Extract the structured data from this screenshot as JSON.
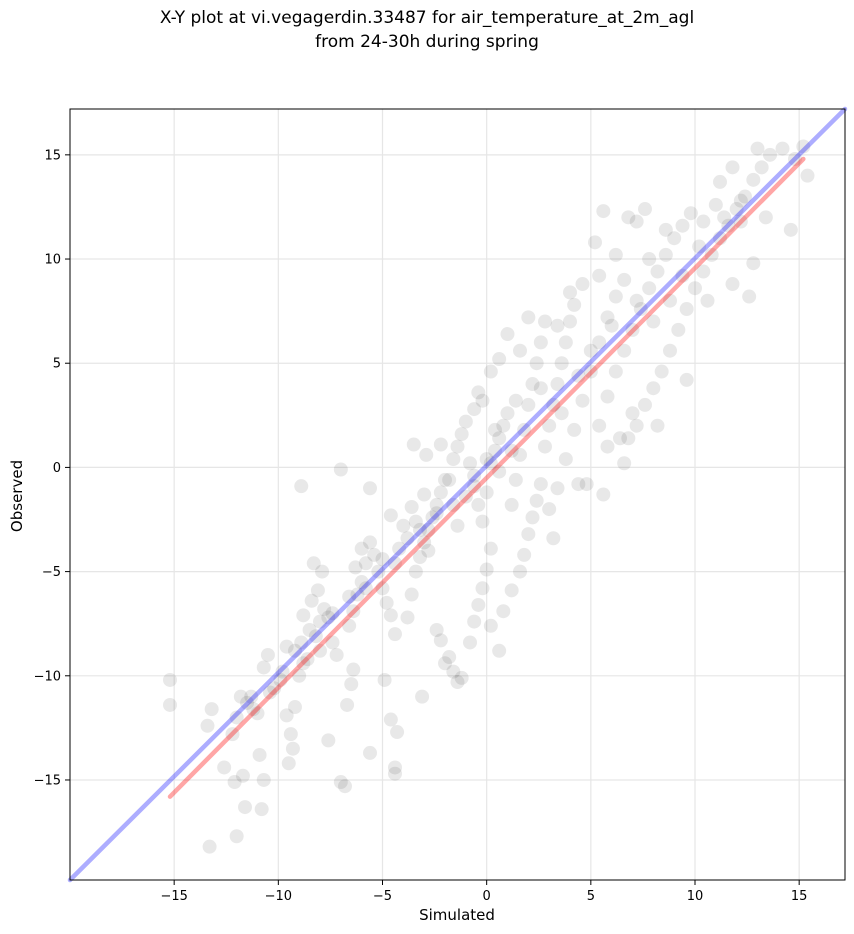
{
  "chart_data": {
    "type": "scatter",
    "title": "X-Y plot at vi.vegagerdin.33487 for air_temperature_at_2m_agl",
    "subtitle": "from 24-30h during spring",
    "xlabel": "Simulated",
    "ylabel": "Observed",
    "xlim": [
      -20.0,
      17.2
    ],
    "ylim": [
      -19.8,
      17.2
    ],
    "xticks": [
      -15,
      -10,
      -5,
      0,
      5,
      10,
      15
    ],
    "yticks": [
      -15,
      -10,
      -5,
      0,
      5,
      10,
      15
    ],
    "grid": true,
    "point_color": "#000000",
    "point_alpha": 0.09,
    "series": [
      {
        "values": [
          [
            -15.2,
            -10.2
          ],
          [
            -15.2,
            -11.4
          ],
          [
            -13.4,
            -12.4
          ],
          [
            -13.3,
            -18.2
          ],
          [
            -13.2,
            -11.6
          ],
          [
            -12.6,
            -14.4
          ],
          [
            -12.1,
            -15.1
          ],
          [
            -12.0,
            -17.7
          ],
          [
            -11.7,
            -14.8
          ],
          [
            -11.6,
            -16.3
          ],
          [
            -12.0,
            -12.0
          ],
          [
            -11.8,
            -11.0
          ],
          [
            -11.5,
            -11.3
          ],
          [
            -11.3,
            -11.0
          ],
          [
            -11.0,
            -11.8
          ],
          [
            -10.8,
            -16.4
          ],
          [
            -10.7,
            -15.0
          ],
          [
            -10.9,
            -13.8
          ],
          [
            -10.7,
            -9.6
          ],
          [
            -10.5,
            -9.0
          ],
          [
            -10.2,
            -10.6
          ],
          [
            -9.9,
            -10.2
          ],
          [
            -9.6,
            -11.9
          ],
          [
            -9.4,
            -12.8
          ],
          [
            -9.3,
            -13.5
          ],
          [
            -9.2,
            -11.5
          ],
          [
            -9.0,
            -10.0
          ],
          [
            -8.8,
            -9.4
          ],
          [
            -9.5,
            -14.2
          ],
          [
            -9.6,
            -8.6
          ],
          [
            -9.2,
            -8.8
          ],
          [
            -8.9,
            -8.4
          ],
          [
            -8.5,
            -7.8
          ],
          [
            -8.2,
            -8.1
          ],
          [
            -8.0,
            -7.4
          ],
          [
            -8.8,
            -7.1
          ],
          [
            -8.4,
            -6.4
          ],
          [
            -8.1,
            -5.9
          ],
          [
            -7.9,
            -5.0
          ],
          [
            -8.3,
            -4.6
          ],
          [
            -7.8,
            -6.8
          ],
          [
            -7.6,
            -7.2
          ],
          [
            -7.4,
            -8.4
          ],
          [
            -7.2,
            -9.0
          ],
          [
            -7.6,
            -13.1
          ],
          [
            -7.0,
            -15.1
          ],
          [
            -6.8,
            -15.3
          ],
          [
            -6.7,
            -11.4
          ],
          [
            -6.5,
            -10.4
          ],
          [
            -6.4,
            -9.7
          ],
          [
            -6.6,
            -7.6
          ],
          [
            -6.4,
            -6.9
          ],
          [
            -6.2,
            -6.1
          ],
          [
            -6.0,
            -5.5
          ],
          [
            -5.8,
            -4.6
          ],
          [
            -5.6,
            -3.6
          ],
          [
            -6.0,
            -3.9
          ],
          [
            -6.3,
            -4.8
          ],
          [
            -5.4,
            -4.2
          ],
          [
            -5.2,
            -5.0
          ],
          [
            -5.0,
            -5.8
          ],
          [
            -4.8,
            -6.5
          ],
          [
            -4.6,
            -7.1
          ],
          [
            -4.4,
            -8.0
          ],
          [
            -4.9,
            -10.2
          ],
          [
            -5.6,
            -13.7
          ],
          [
            -4.4,
            -14.4
          ],
          [
            -4.4,
            -14.7
          ],
          [
            -4.3,
            -12.7
          ],
          [
            -4.6,
            -12.1
          ],
          [
            -3.8,
            -7.2
          ],
          [
            -3.6,
            -6.1
          ],
          [
            -3.4,
            -5.0
          ],
          [
            -3.2,
            -4.3
          ],
          [
            -3.0,
            -3.6
          ],
          [
            -2.8,
            -3.0
          ],
          [
            -2.6,
            -2.4
          ],
          [
            -2.4,
            -1.8
          ],
          [
            -2.2,
            -1.2
          ],
          [
            -2.0,
            -0.6
          ],
          [
            -3.4,
            -2.6
          ],
          [
            -3.8,
            -3.4
          ],
          [
            -4.2,
            -3.9
          ],
          [
            -4.6,
            -2.3
          ],
          [
            -4.0,
            -2.8
          ],
          [
            -3.6,
            -1.9
          ],
          [
            -3.1,
            -11.0
          ],
          [
            -2.4,
            -7.8
          ],
          [
            -2.2,
            -8.3
          ],
          [
            -2.0,
            -9.4
          ],
          [
            -1.8,
            -9.1
          ],
          [
            -1.6,
            -9.8
          ],
          [
            -1.4,
            -10.3
          ],
          [
            -1.2,
            -10.1
          ],
          [
            -0.8,
            -8.4
          ],
          [
            -0.6,
            -7.4
          ],
          [
            -0.4,
            -6.6
          ],
          [
            -0.2,
            -5.8
          ],
          [
            0.0,
            -4.9
          ],
          [
            0.2,
            -3.9
          ],
          [
            -1.8,
            -0.6
          ],
          [
            -1.6,
            0.4
          ],
          [
            -1.4,
            1.0
          ],
          [
            -1.2,
            1.6
          ],
          [
            -1.0,
            2.2
          ],
          [
            -0.8,
            0.2
          ],
          [
            -0.6,
            -0.9
          ],
          [
            -0.4,
            -1.8
          ],
          [
            -0.2,
            -2.6
          ],
          [
            0.0,
            -1.2
          ],
          [
            0.2,
            0.2
          ],
          [
            0.4,
            0.8
          ],
          [
            0.6,
            1.4
          ],
          [
            0.8,
            2.0
          ],
          [
            1.0,
            2.6
          ],
          [
            -0.6,
            2.8
          ],
          [
            -0.4,
            3.6
          ],
          [
            -1.4,
            -2.8
          ],
          [
            -2.2,
            1.1
          ],
          [
            -2.9,
            0.6
          ],
          [
            -3.5,
            1.1
          ],
          [
            -8.9,
            -0.9
          ],
          [
            -7.0,
            -0.1
          ],
          [
            -5.6,
            -1.0
          ],
          [
            -3.0,
            -1.3
          ],
          [
            0.6,
            -8.8
          ],
          [
            0.2,
            -7.6
          ],
          [
            0.8,
            -6.9
          ],
          [
            1.2,
            -5.9
          ],
          [
            1.6,
            -5.0
          ],
          [
            1.8,
            -4.2
          ],
          [
            2.0,
            -3.2
          ],
          [
            2.2,
            -2.4
          ],
          [
            2.4,
            -1.6
          ],
          [
            2.6,
            -0.8
          ],
          [
            1.2,
            -1.8
          ],
          [
            1.4,
            -0.6
          ],
          [
            1.6,
            0.6
          ],
          [
            1.8,
            1.8
          ],
          [
            2.0,
            3.0
          ],
          [
            2.2,
            4.0
          ],
          [
            2.4,
            5.0
          ],
          [
            2.6,
            6.0
          ],
          [
            2.0,
            7.2
          ],
          [
            1.6,
            5.6
          ],
          [
            2.8,
            1.0
          ],
          [
            3.0,
            2.0
          ],
          [
            3.2,
            3.0
          ],
          [
            3.4,
            4.0
          ],
          [
            3.6,
            5.0
          ],
          [
            3.8,
            6.0
          ],
          [
            4.0,
            7.0
          ],
          [
            4.2,
            7.8
          ],
          [
            3.0,
            -2.0
          ],
          [
            3.2,
            -3.4
          ],
          [
            3.4,
            -1.0
          ],
          [
            3.8,
            0.4
          ],
          [
            4.2,
            1.8
          ],
          [
            4.6,
            3.2
          ],
          [
            5.0,
            4.6
          ],
          [
            5.4,
            6.0
          ],
          [
            5.8,
            7.2
          ],
          [
            6.2,
            8.2
          ],
          [
            6.6,
            9.0
          ],
          [
            5.6,
            12.3
          ],
          [
            5.2,
            10.8
          ],
          [
            4.4,
            -0.8
          ],
          [
            4.8,
            -0.8
          ],
          [
            5.6,
            -1.3
          ],
          [
            5.4,
            2.0
          ],
          [
            5.8,
            3.4
          ],
          [
            6.2,
            4.6
          ],
          [
            6.6,
            5.6
          ],
          [
            7.0,
            6.6
          ],
          [
            7.4,
            7.6
          ],
          [
            7.8,
            8.6
          ],
          [
            8.2,
            9.4
          ],
          [
            8.6,
            10.2
          ],
          [
            9.0,
            11.0
          ],
          [
            9.4,
            11.6
          ],
          [
            6.6,
            0.2
          ],
          [
            6.8,
            1.4
          ],
          [
            7.2,
            2.0
          ],
          [
            7.6,
            3.0
          ],
          [
            8.0,
            3.8
          ],
          [
            8.4,
            4.6
          ],
          [
            8.8,
            5.6
          ],
          [
            9.2,
            6.6
          ],
          [
            9.6,
            7.6
          ],
          [
            10.0,
            8.6
          ],
          [
            10.4,
            9.4
          ],
          [
            10.8,
            10.2
          ],
          [
            11.2,
            11.0
          ],
          [
            11.6,
            11.6
          ],
          [
            12.0,
            12.4
          ],
          [
            12.4,
            13.0
          ],
          [
            12.8,
            13.8
          ],
          [
            13.2,
            14.4
          ],
          [
            13.6,
            15.0
          ],
          [
            14.2,
            15.3
          ],
          [
            14.8,
            14.8
          ],
          [
            15.2,
            15.4
          ],
          [
            15.4,
            14.0
          ],
          [
            13.0,
            15.3
          ],
          [
            11.2,
            13.7
          ],
          [
            11.8,
            14.4
          ],
          [
            12.2,
            11.8
          ],
          [
            12.6,
            8.2
          ],
          [
            11.8,
            8.8
          ],
          [
            10.6,
            8.0
          ],
          [
            9.6,
            4.2
          ],
          [
            8.2,
            2.0
          ],
          [
            7.0,
            2.6
          ],
          [
            6.4,
            1.4
          ],
          [
            5.8,
            1.0
          ],
          [
            4.0,
            8.4
          ],
          [
            6.8,
            12.0
          ],
          [
            7.2,
            11.8
          ],
          [
            7.6,
            12.4
          ],
          [
            8.6,
            11.4
          ],
          [
            9.8,
            12.2
          ],
          [
            10.4,
            11.8
          ],
          [
            11.0,
            12.6
          ],
          [
            12.8,
            9.8
          ],
          [
            13.4,
            12.0
          ],
          [
            14.6,
            11.4
          ],
          [
            7.8,
            10.0
          ],
          [
            6.2,
            10.2
          ],
          [
            5.4,
            9.2
          ],
          [
            4.6,
            8.8
          ],
          [
            3.4,
            6.8
          ],
          [
            2.8,
            7.0
          ],
          [
            1.0,
            6.4
          ],
          [
            0.6,
            5.2
          ],
          [
            0.2,
            4.6
          ],
          [
            -0.2,
            3.2
          ],
          [
            0.4,
            1.8
          ],
          [
            1.4,
            3.2
          ],
          [
            2.6,
            3.8
          ],
          [
            3.6,
            2.6
          ],
          [
            4.4,
            4.4
          ],
          [
            5.0,
            5.6
          ],
          [
            6.0,
            6.8
          ],
          [
            7.2,
            8.0
          ],
          [
            8.0,
            7.0
          ],
          [
            8.8,
            8.0
          ],
          [
            9.4,
            9.2
          ],
          [
            10.2,
            10.6
          ],
          [
            11.4,
            12.0
          ],
          [
            12.2,
            12.8
          ],
          [
            -0.6,
            -0.4
          ],
          [
            0.0,
            0.4
          ],
          [
            0.6,
            -0.2
          ],
          [
            1.2,
            0.8
          ],
          [
            -1.0,
            -1.4
          ],
          [
            -1.6,
            -1.8
          ],
          [
            -2.4,
            -2.2
          ],
          [
            -2.8,
            -4.0
          ],
          [
            -3.2,
            -3.0
          ],
          [
            -4.4,
            -4.6
          ],
          [
            -5.0,
            -4.4
          ],
          [
            -5.8,
            -5.8
          ],
          [
            -6.6,
            -6.2
          ],
          [
            -7.4,
            -7.0
          ],
          [
            -8.0,
            -8.8
          ],
          [
            -8.6,
            -9.2
          ],
          [
            -9.8,
            -9.8
          ],
          [
            -10.4,
            -10.8
          ],
          [
            -11.2,
            -11.6
          ],
          [
            -12.2,
            -12.8
          ]
        ]
      }
    ],
    "reference_lines": [
      {
        "color": "#0000ff",
        "alpha": 0.32,
        "points": [
          [
            -20.0,
            -19.8
          ],
          [
            17.2,
            17.2
          ]
        ]
      },
      {
        "color": "#ff0000",
        "alpha": 0.35,
        "points": [
          [
            -15.2,
            -15.8
          ],
          [
            15.2,
            14.8
          ]
        ]
      }
    ]
  }
}
